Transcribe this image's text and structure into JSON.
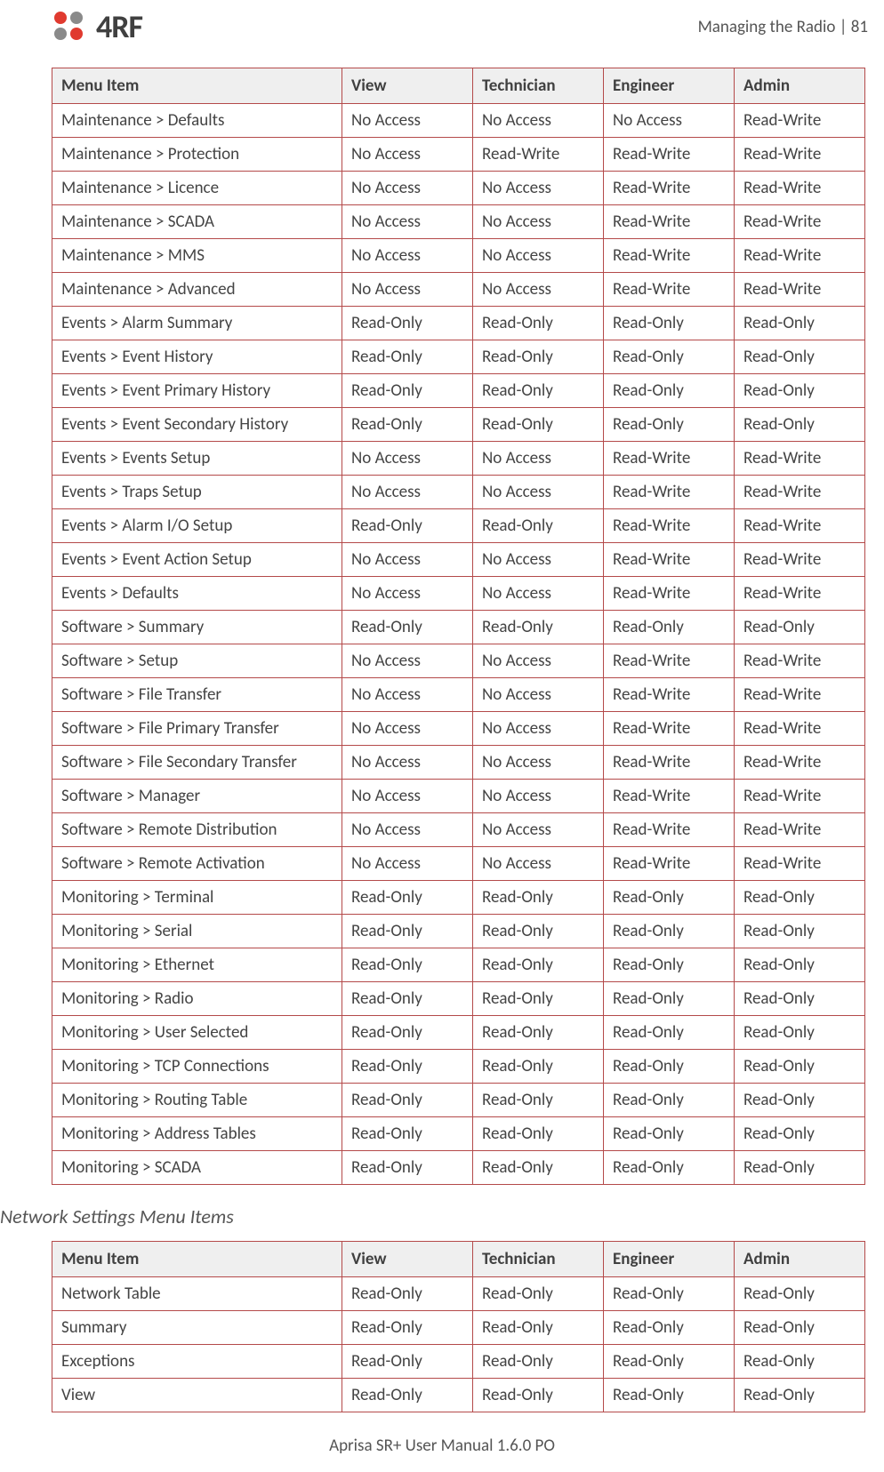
{
  "brand": "4RF",
  "header_right": "Managing the Radio  |  81",
  "logo_colors": {
    "red": "#e03a2f",
    "gray": "#8a8a8a",
    "text": "#404040"
  },
  "table_border_color": "#b44a4a",
  "header_bg": "#efefef",
  "body_font_size": 19,
  "header_font_size": 19,
  "section_heading": "Network Settings Menu Items",
  "footer": "Aprisa SR+ User Manual 1.6.0 PO",
  "columns": [
    "Menu Item",
    "View",
    "Technician",
    "Engineer",
    "Admin"
  ],
  "table1_rows": [
    [
      "Maintenance > Defaults",
      "No Access",
      "No Access",
      "No Access",
      "Read-Write"
    ],
    [
      "Maintenance > Protection",
      "No Access",
      "Read-Write",
      "Read-Write",
      "Read-Write"
    ],
    [
      "Maintenance > Licence",
      "No Access",
      "No Access",
      "Read-Write",
      "Read-Write"
    ],
    [
      "Maintenance > SCADA",
      "No Access",
      "No Access",
      "Read-Write",
      "Read-Write"
    ],
    [
      "Maintenance > MMS",
      "No Access",
      "No Access",
      "Read-Write",
      "Read-Write"
    ],
    [
      "Maintenance > Advanced",
      "No Access",
      "No Access",
      "Read-Write",
      "Read-Write"
    ],
    [
      "Events > Alarm Summary",
      "Read-Only",
      "Read-Only",
      "Read-Only",
      "Read-Only"
    ],
    [
      "Events > Event History",
      "Read-Only",
      "Read-Only",
      "Read-Only",
      "Read-Only"
    ],
    [
      "Events > Event Primary History",
      "Read-Only",
      "Read-Only",
      "Read-Only",
      "Read-Only"
    ],
    [
      "Events > Event Secondary History",
      "Read-Only",
      "Read-Only",
      "Read-Only",
      "Read-Only"
    ],
    [
      "Events > Events Setup",
      "No Access",
      "No Access",
      "Read-Write",
      "Read-Write"
    ],
    [
      "Events > Traps Setup",
      "No Access",
      "No Access",
      "Read-Write",
      "Read-Write"
    ],
    [
      "Events > Alarm I/O Setup",
      "Read-Only",
      "Read-Only",
      "Read-Write",
      "Read-Write"
    ],
    [
      "Events > Event Action Setup",
      "No Access",
      "No Access",
      "Read-Write",
      "Read-Write"
    ],
    [
      "Events > Defaults",
      "No Access",
      "No Access",
      "Read-Write",
      "Read-Write"
    ],
    [
      "Software > Summary",
      "Read-Only",
      "Read-Only",
      "Read-Only",
      "Read-Only"
    ],
    [
      "Software > Setup",
      "No Access",
      "No Access",
      "Read-Write",
      "Read-Write"
    ],
    [
      "Software > File Transfer",
      "No Access",
      "No Access",
      "Read-Write",
      "Read-Write"
    ],
    [
      "Software > File Primary Transfer",
      "No Access",
      "No Access",
      "Read-Write",
      "Read-Write"
    ],
    [
      "Software > File Secondary Transfer",
      "No Access",
      "No Access",
      "Read-Write",
      "Read-Write"
    ],
    [
      "Software > Manager",
      "No Access",
      "No Access",
      "Read-Write",
      "Read-Write"
    ],
    [
      "Software > Remote Distribution",
      "No Access",
      "No Access",
      "Read-Write",
      "Read-Write"
    ],
    [
      "Software > Remote Activation",
      "No Access",
      "No Access",
      "Read-Write",
      "Read-Write"
    ],
    [
      "Monitoring > Terminal",
      "Read-Only",
      "Read-Only",
      "Read-Only",
      "Read-Only"
    ],
    [
      "Monitoring > Serial",
      "Read-Only",
      "Read-Only",
      "Read-Only",
      "Read-Only"
    ],
    [
      "Monitoring > Ethernet",
      "Read-Only",
      "Read-Only",
      "Read-Only",
      "Read-Only"
    ],
    [
      "Monitoring > Radio",
      "Read-Only",
      "Read-Only",
      "Read-Only",
      "Read-Only"
    ],
    [
      "Monitoring > User Selected",
      "Read-Only",
      "Read-Only",
      "Read-Only",
      "Read-Only"
    ],
    [
      "Monitoring > TCP Connections",
      "Read-Only",
      "Read-Only",
      "Read-Only",
      "Read-Only"
    ],
    [
      "Monitoring > Routing Table",
      "Read-Only",
      "Read-Only",
      "Read-Only",
      "Read-Only"
    ],
    [
      "Monitoring > Address Tables",
      "Read-Only",
      "Read-Only",
      "Read-Only",
      "Read-Only"
    ],
    [
      "Monitoring > SCADA",
      "Read-Only",
      "Read-Only",
      "Read-Only",
      "Read-Only"
    ]
  ],
  "table2_rows": [
    [
      "Network Table",
      "Read-Only",
      "Read-Only",
      "Read-Only",
      "Read-Only"
    ],
    [
      "Summary",
      "Read-Only",
      "Read-Only",
      "Read-Only",
      "Read-Only"
    ],
    [
      "Exceptions",
      "Read-Only",
      "Read-Only",
      "Read-Only",
      "Read-Only"
    ],
    [
      "View",
      "Read-Only",
      "Read-Only",
      "Read-Only",
      "Read-Only"
    ]
  ]
}
